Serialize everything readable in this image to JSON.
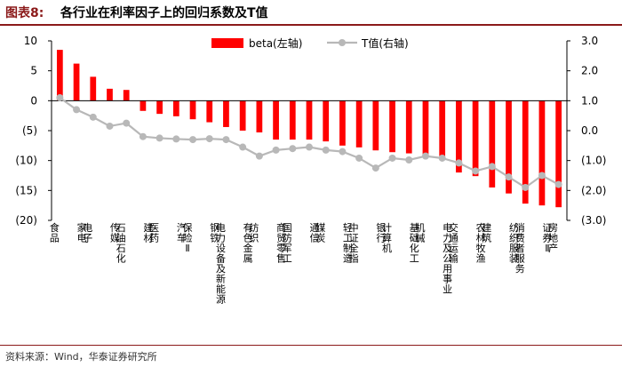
{
  "header": {
    "figure_number": "图表8:",
    "title": "各行业在利率因子上的回归系数及T值"
  },
  "source": "资料来源：Wind，华泰证券研究所",
  "chart_data": {
    "type": "bar",
    "categories": [
      "食品",
      "家电",
      "电子",
      "传媒",
      "石油石化",
      "建材",
      "医药",
      "汽车",
      "保险Ⅱ",
      "钢铁",
      "电力设备及新能源",
      "有色金属",
      "纺织",
      "商贸零售",
      "国防军工",
      "通信",
      "煤炭",
      "轻工制造",
      "中证全指",
      "银行",
      "计算机",
      "基础化工",
      "机械",
      "电力及公用事业",
      "交通运输",
      "农林牧渔",
      "建筑",
      "纺织服装",
      "消费者服务",
      "证券Ⅱ",
      "房地产"
    ],
    "series": [
      {
        "name": "beta(左轴)",
        "axis": "left",
        "type": "bar",
        "color": "#ff0000",
        "values": [
          8.5,
          6.2,
          4.0,
          2.0,
          1.8,
          -1.7,
          -2.2,
          -2.6,
          -3.1,
          -3.6,
          -4.4,
          -5.0,
          -5.3,
          -6.5,
          -6.5,
          -6.5,
          -6.8,
          -7.5,
          -7.8,
          -8.3,
          -8.6,
          -8.8,
          -9.0,
          -9.3,
          -12.0,
          -12.6,
          -14.5,
          -15.5,
          -17.2,
          -17.5,
          -17.8
        ]
      },
      {
        "name": "T值(右轴)",
        "axis": "right",
        "type": "line",
        "color": "#b8b8b8",
        "values": [
          1.1,
          0.7,
          0.45,
          0.15,
          0.25,
          -0.2,
          -0.25,
          -0.28,
          -0.3,
          -0.27,
          -0.3,
          -0.55,
          -0.85,
          -0.65,
          -0.6,
          -0.55,
          -0.65,
          -0.7,
          -0.92,
          -1.25,
          -0.92,
          -0.98,
          -0.85,
          -0.92,
          -1.08,
          -1.35,
          -1.2,
          -1.55,
          -1.9,
          -1.5,
          -1.8
        ]
      }
    ],
    "left_axis": {
      "min": -20,
      "max": 10,
      "ticks": [
        10,
        5,
        0,
        -5,
        -10,
        -15,
        -20
      ],
      "tick_labels": [
        "10",
        "5",
        "0",
        "(5)",
        "(10)",
        "(15)",
        "(20)"
      ]
    },
    "right_axis": {
      "min": -3,
      "max": 3,
      "ticks": [
        3,
        2,
        1,
        0,
        -1,
        -2,
        -3
      ],
      "tick_labels": [
        "3.0",
        "2.0",
        "1.0",
        "0.0",
        "(1.0)",
        "(2.0)",
        "(3.0)"
      ]
    },
    "legend_position": "top",
    "grid": false
  }
}
